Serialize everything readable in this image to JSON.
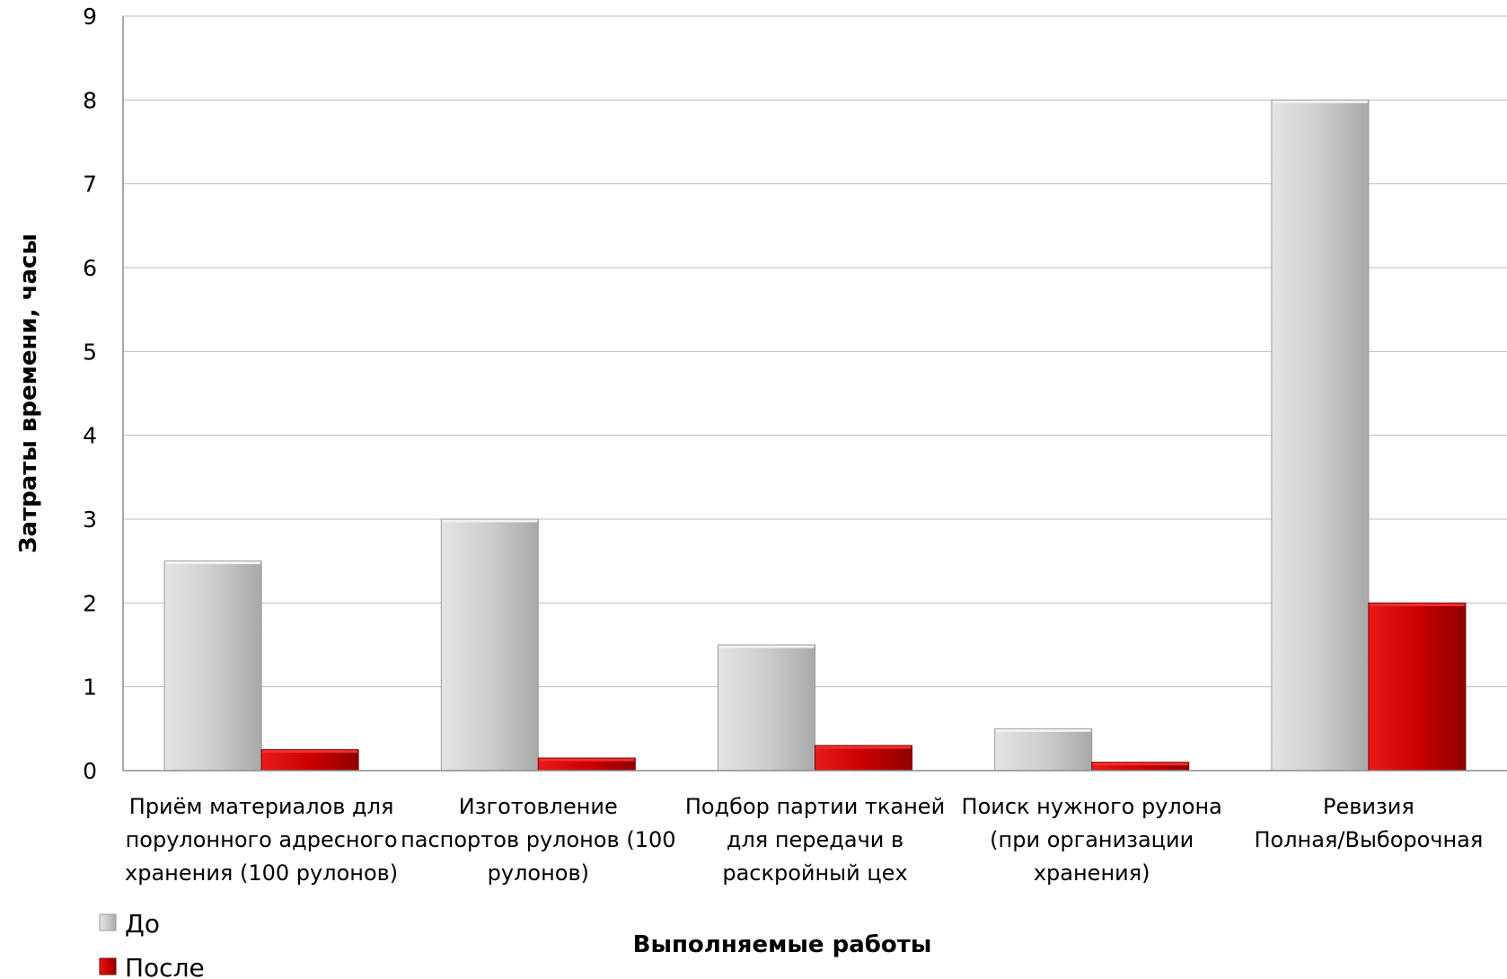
{
  "chart_data": {
    "type": "bar",
    "title": "",
    "xlabel": "Выполняемые работы",
    "ylabel": "Затраты времени, часы",
    "ylim": [
      0,
      9
    ],
    "yticks": [
      0,
      1,
      2,
      3,
      4,
      5,
      6,
      7,
      8,
      9
    ],
    "grid": true,
    "legend_position": "bottom-left",
    "categories": [
      [
        "Приём материалов для",
        "порулонного адресного",
        "хранения (100 рулонов)"
      ],
      [
        "Изготовление",
        "паспортов рулонов (100",
        "рулонов)"
      ],
      [
        "Подбор партии тканей",
        "для передачи в",
        "раскройный цех"
      ],
      [
        "Поиск нужного рулона",
        "(при организации",
        "хранения)"
      ],
      [
        "Ревизия",
        "Полная/Выборочная"
      ]
    ],
    "series": [
      {
        "name": "До",
        "color": "#c8c8c8",
        "values": [
          2.5,
          3,
          1.5,
          0.5,
          8
        ]
      },
      {
        "name": "После",
        "color": "#cc0000",
        "values": [
          0.25,
          0.15,
          0.3,
          0.1,
          2
        ]
      }
    ]
  }
}
